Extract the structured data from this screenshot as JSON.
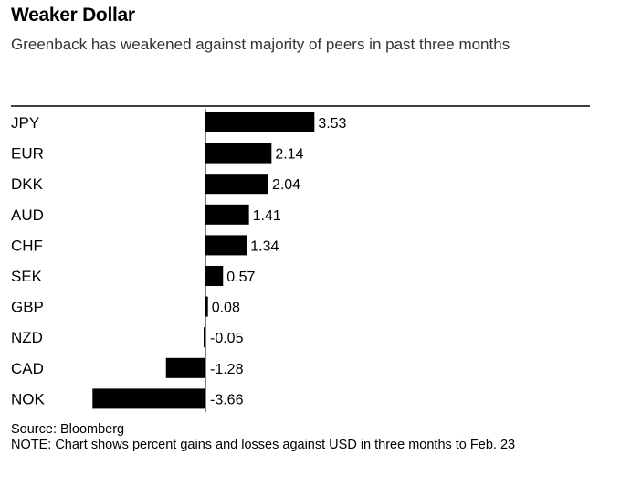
{
  "header": {
    "title": "Weaker Dollar",
    "subtitle": "Greenback has weakened against majority of peers in past three months"
  },
  "footer": {
    "source": "Source: Bloomberg",
    "note": "NOTE: Chart shows percent gains and losses against USD in three months to Feb. 23"
  },
  "colors": {
    "bar": "#000000",
    "axis": "#000000",
    "background": "#ffffff"
  },
  "chart_data": {
    "type": "bar",
    "orientation": "horizontal",
    "title": "Weaker Dollar",
    "subtitle": "Greenback has weakened against majority of peers in past three months",
    "xlabel": "",
    "ylabel": "",
    "categories": [
      "JPY",
      "EUR",
      "DKK",
      "AUD",
      "CHF",
      "SEK",
      "GBP",
      "NZD",
      "CAD",
      "NOK"
    ],
    "values": [
      3.53,
      2.14,
      2.04,
      1.41,
      1.34,
      0.57,
      0.08,
      -0.05,
      -1.28,
      -3.66
    ],
    "value_labels": [
      "3.53",
      "2.14",
      "2.04",
      "1.41",
      "1.34",
      "0.57",
      "0.08",
      "-0.05",
      "-1.28",
      "-3.66"
    ],
    "xlim": [
      -3.66,
      3.53
    ],
    "grid": false,
    "legend": "none"
  }
}
